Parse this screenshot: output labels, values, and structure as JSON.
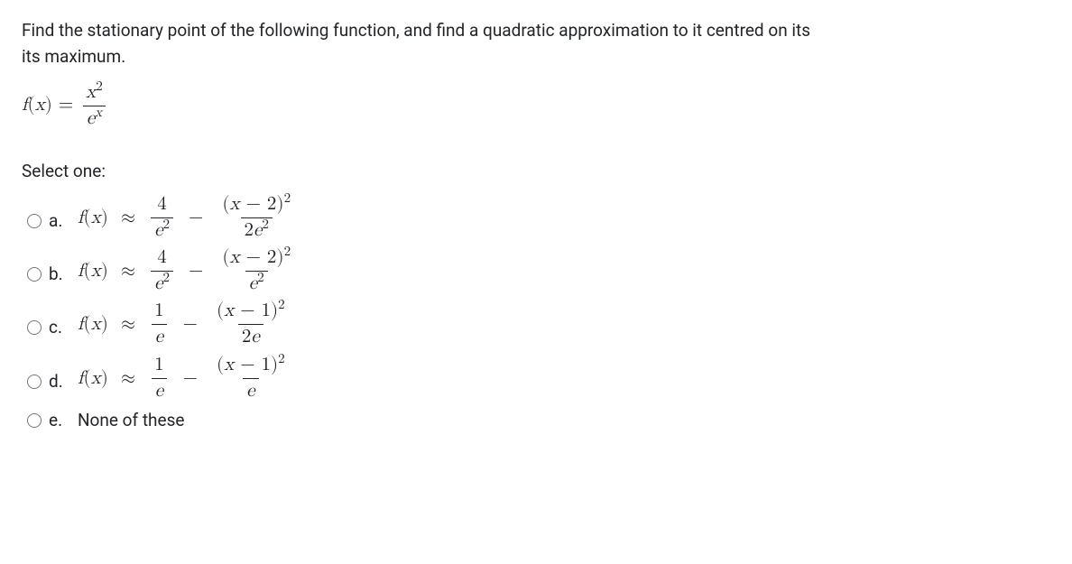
{
  "question": {
    "line1": "Find the stationary point of the following function, and find a quadratic approximation to it centred on its",
    "line2": "its maximum."
  },
  "func_lhs": "f(x) =",
  "func_frac": {
    "num": "x²",
    "den_base": "e",
    "den_exp": "x"
  },
  "select_label": "Select one:",
  "options": {
    "a": {
      "letter": "a.",
      "prefix": "f(x) ≈",
      "t1": {
        "num": "4",
        "den": "e²"
      },
      "t2": {
        "num": "(x − 2)²",
        "den": "2e²"
      }
    },
    "b": {
      "letter": "b.",
      "prefix": "f(x) ≈",
      "t1": {
        "num": "4",
        "den": "e²"
      },
      "t2": {
        "num": "(x − 2)²",
        "den": "e²"
      }
    },
    "c": {
      "letter": "c.",
      "prefix": "f(x) ≈",
      "t1": {
        "num": "1",
        "den": "e"
      },
      "t2": {
        "num": "(x − 1)²",
        "den": "2e"
      }
    },
    "d": {
      "letter": "d.",
      "prefix": "f(x) ≈",
      "t1": {
        "num": "1",
        "den": "e"
      },
      "t2": {
        "num": "(x − 1)²",
        "den": "e"
      }
    },
    "e": {
      "letter": "e.",
      "text": "None of these"
    }
  },
  "style": {
    "font_body": 19,
    "font_math": 21,
    "color_text": "#212529",
    "color_bg": "#ffffff"
  }
}
